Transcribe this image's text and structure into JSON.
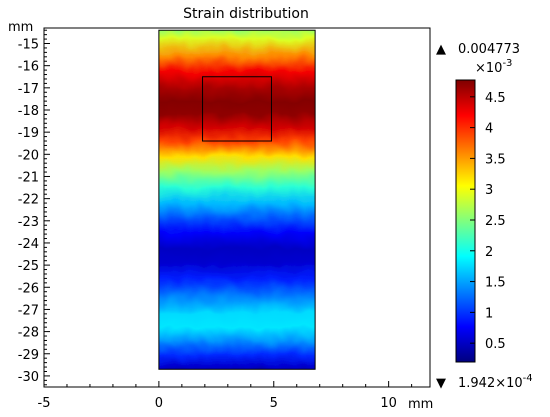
{
  "chart_data": {
    "type": "heatmap",
    "title": "Strain distribution",
    "x_unit": "mm",
    "y_unit": "mm",
    "xlim": [
      -5,
      11.8
    ],
    "ylim": [
      -30.5,
      -14.3
    ],
    "x_ticks": [
      -5,
      0,
      5,
      10
    ],
    "y_ticks": [
      -15,
      -16,
      -17,
      -18,
      -19,
      -20,
      -21,
      -22,
      -23,
      -24,
      -25,
      -26,
      -27,
      -28,
      -29,
      -30
    ],
    "domain": {
      "x": [
        0,
        6.8
      ],
      "y": [
        -29.7,
        -14.4
      ]
    },
    "highlight_region": {
      "x": [
        1.9,
        4.9
      ],
      "y": [
        -19.4,
        -16.5
      ]
    },
    "strain_profile": {
      "y": [
        -14.4,
        -15.0,
        -15.8,
        -16.5,
        -17.2,
        -17.8,
        -18.3,
        -18.9,
        -19.5,
        -20.2,
        -20.8,
        -21.5,
        -22.2,
        -22.8,
        -23.5,
        -24.2,
        -24.8,
        -25.5,
        -26.2,
        -27.0,
        -27.6,
        -28.2,
        -28.8,
        -29.3,
        -29.7
      ],
      "value": [
        2.4,
        2.9,
        3.6,
        4.25,
        4.6,
        4.75,
        4.7,
        4.4,
        3.9,
        3.2,
        2.6,
        2.1,
        1.6,
        1.2,
        0.75,
        0.5,
        0.55,
        0.9,
        1.3,
        1.75,
        1.8,
        1.45,
        0.95,
        0.55,
        0.3
      ]
    },
    "colorbar": {
      "max_label": "0.004773",
      "min_label": "1.942×10",
      "min_exponent": "-4",
      "scale_base": "×10",
      "scale_exponent": "-3",
      "range": [
        0.1942,
        4.773
      ],
      "ticks": [
        "0.5",
        "1",
        "1.5",
        "2",
        "2.5",
        "3",
        "3.5",
        "4",
        "4.5"
      ],
      "max_marker": "▲",
      "min_marker": "▼"
    },
    "colormap": [
      "#00007f",
      "#0000ff",
      "#007fff",
      "#00ffff",
      "#7fff7f",
      "#ffff00",
      "#ff7f00",
      "#ff0000",
      "#7f0000"
    ]
  }
}
